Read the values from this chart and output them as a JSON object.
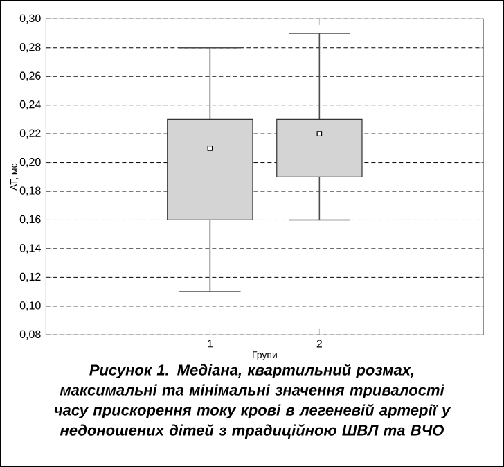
{
  "chart_data": {
    "type": "box",
    "categories": [
      "1",
      "2"
    ],
    "boxes": [
      {
        "low": 0.11,
        "q1": 0.16,
        "median": 0.21,
        "q3": 0.23,
        "high": 0.28
      },
      {
        "low": 0.16,
        "q1": 0.19,
        "median": 0.22,
        "q3": 0.23,
        "high": 0.29
      }
    ],
    "colors": [
      "#d4d4d4",
      "#d4d4d4"
    ],
    "marker": "square",
    "xlabel": "Групи",
    "ylabel": "АТ, мс",
    "ylim": [
      0.08,
      0.3
    ],
    "yticks": [
      {
        "value": 0.08,
        "label": "0,08"
      },
      {
        "value": 0.1,
        "label": "0,10"
      },
      {
        "value": 0.12,
        "label": "0,12"
      },
      {
        "value": 0.14,
        "label": "0,14"
      },
      {
        "value": 0.16,
        "label": "0,16"
      },
      {
        "value": 0.18,
        "label": "0,18"
      },
      {
        "value": 0.2,
        "label": "0,20"
      },
      {
        "value": 0.22,
        "label": "0,22"
      },
      {
        "value": 0.24,
        "label": "0,24"
      },
      {
        "value": 0.26,
        "label": "0,26"
      },
      {
        "value": 0.28,
        "label": "0,28"
      },
      {
        "value": 0.3,
        "label": "0,30"
      }
    ],
    "grid": "y",
    "annotations": [
      "Рисунок 1. Медіана, квартильний розмах, максимальні та мінімальні значення тривалості часу прискорення току крові в легеневій артерії у недоношених дітей з традиційною ШВЛ та ВЧО"
    ]
  }
}
